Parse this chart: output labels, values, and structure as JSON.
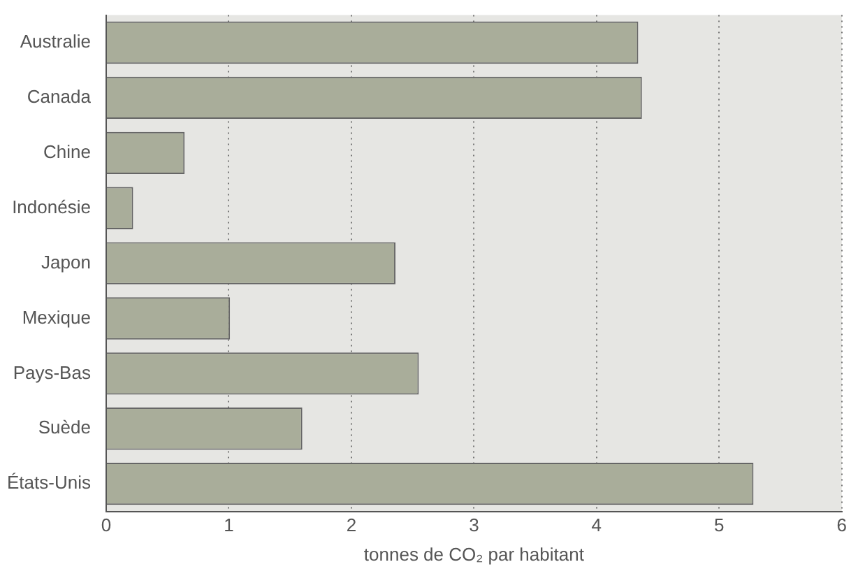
{
  "chart_data": {
    "type": "bar",
    "orientation": "horizontal",
    "xlabel": "tonnes de CO₂ par habitant",
    "categories": [
      "Australie",
      "Canada",
      "Chine",
      "Indonésie",
      "Japon",
      "Mexique",
      "Pays-Bas",
      "Suède",
      "États-Unis"
    ],
    "values": [
      4.34,
      4.37,
      0.64,
      0.22,
      2.36,
      1.01,
      2.55,
      1.6,
      5.28
    ],
    "color": "#a9ad9a",
    "xlim": [
      0,
      6
    ],
    "xticks": [
      0,
      1,
      2,
      3,
      4,
      5,
      6
    ],
    "grid": "x"
  }
}
